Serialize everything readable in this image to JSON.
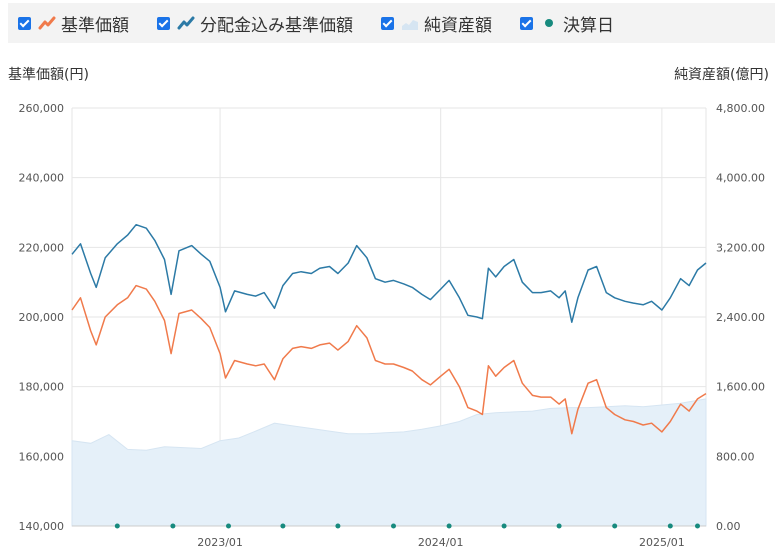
{
  "legend": {
    "items": [
      {
        "label": "基準価額",
        "icon": "line-chart-orange-icon",
        "checked": true
      },
      {
        "label": "分配金込み基準価額",
        "icon": "line-chart-blue-icon",
        "checked": true
      },
      {
        "label": "純資産額",
        "icon": "area-chart-icon",
        "checked": true
      },
      {
        "label": "決算日",
        "icon": "dot-teal-icon",
        "checked": true
      }
    ]
  },
  "colors": {
    "nav": "#f07a4b",
    "nav_with_dividends": "#2c7aa6",
    "net_assets_fill": "#e5f0f9",
    "net_assets_line": "#d6e5f2",
    "settlement": "#178a7e",
    "grid": "#e6e6e6",
    "check": "#1a73e8"
  },
  "chart_data": {
    "type": "line",
    "left_axis": {
      "title": "基準価額(円)",
      "range": [
        140000,
        260000
      ],
      "ticks": [
        "260,000",
        "240,000",
        "220,000",
        "200,000",
        "180,000",
        "160,000",
        "140,000"
      ]
    },
    "right_axis": {
      "title": "純資産額(億円)",
      "range": [
        0,
        4800
      ],
      "ticks": [
        "4,800.00",
        "4,000.00",
        "3,200.00",
        "2,400.00",
        "1,600.00",
        "800.00",
        "0.00"
      ]
    },
    "x_range": [
      "2022-05-01",
      "2025-03-15"
    ],
    "x_ticks": [
      {
        "date": "2023-01-01",
        "label": "2023/01"
      },
      {
        "date": "2024-01-01",
        "label": "2024/01"
      },
      {
        "date": "2025-01-01",
        "label": "2025/01"
      }
    ],
    "grid": true,
    "series": [
      {
        "name": "基準価額",
        "axis": "left",
        "points": [
          [
            "2022-05-01",
            202000
          ],
          [
            "2022-05-15",
            205500
          ],
          [
            "2022-06-01",
            196000
          ],
          [
            "2022-06-10",
            192000
          ],
          [
            "2022-06-25",
            200000
          ],
          [
            "2022-07-15",
            203500
          ],
          [
            "2022-08-01",
            205500
          ],
          [
            "2022-08-15",
            209000
          ],
          [
            "2022-09-01",
            208000
          ],
          [
            "2022-09-15",
            204500
          ],
          [
            "2022-10-01",
            199000
          ],
          [
            "2022-10-12",
            189500
          ],
          [
            "2022-10-25",
            201000
          ],
          [
            "2022-11-15",
            202000
          ],
          [
            "2022-12-01",
            199500
          ],
          [
            "2022-12-15",
            197000
          ],
          [
            "2023-01-01",
            189500
          ],
          [
            "2023-01-10",
            182500
          ],
          [
            "2023-01-25",
            187500
          ],
          [
            "2023-02-15",
            186500
          ],
          [
            "2023-03-01",
            186000
          ],
          [
            "2023-03-15",
            186500
          ],
          [
            "2023-04-01",
            182000
          ],
          [
            "2023-04-15",
            188000
          ],
          [
            "2023-05-01",
            191000
          ],
          [
            "2023-05-15",
            191500
          ],
          [
            "2023-06-01",
            191000
          ],
          [
            "2023-06-15",
            192000
          ],
          [
            "2023-07-01",
            192500
          ],
          [
            "2023-07-15",
            190500
          ],
          [
            "2023-08-01",
            193000
          ],
          [
            "2023-08-15",
            197500
          ],
          [
            "2023-09-01",
            194000
          ],
          [
            "2023-09-15",
            187500
          ],
          [
            "2023-10-01",
            186500
          ],
          [
            "2023-10-15",
            186500
          ],
          [
            "2023-11-01",
            185500
          ],
          [
            "2023-11-15",
            184500
          ],
          [
            "2023-12-01",
            182000
          ],
          [
            "2023-12-15",
            180500
          ],
          [
            "2024-01-01",
            183000
          ],
          [
            "2024-01-15",
            185000
          ],
          [
            "2024-02-01",
            180000
          ],
          [
            "2024-02-15",
            174000
          ],
          [
            "2024-03-01",
            173000
          ],
          [
            "2024-03-10",
            172000
          ],
          [
            "2024-03-20",
            186000
          ],
          [
            "2024-04-01",
            183000
          ],
          [
            "2024-04-15",
            185500
          ],
          [
            "2024-05-01",
            187500
          ],
          [
            "2024-05-15",
            181000
          ],
          [
            "2024-06-01",
            177500
          ],
          [
            "2024-06-15",
            177000
          ],
          [
            "2024-07-01",
            177000
          ],
          [
            "2024-07-15",
            175000
          ],
          [
            "2024-07-25",
            176500
          ],
          [
            "2024-08-05",
            166500
          ],
          [
            "2024-08-15",
            173500
          ],
          [
            "2024-09-01",
            181000
          ],
          [
            "2024-09-15",
            182000
          ],
          [
            "2024-10-01",
            174000
          ],
          [
            "2024-10-15",
            172000
          ],
          [
            "2024-11-01",
            170500
          ],
          [
            "2024-11-15",
            170000
          ],
          [
            "2024-12-01",
            169000
          ],
          [
            "2024-12-15",
            169500
          ],
          [
            "2025-01-01",
            167000
          ],
          [
            "2025-01-15",
            170000
          ],
          [
            "2025-02-01",
            175000
          ],
          [
            "2025-02-15",
            173000
          ],
          [
            "2025-03-01",
            176500
          ],
          [
            "2025-03-15",
            178000
          ]
        ]
      },
      {
        "name": "分配金込み基準価額",
        "axis": "left",
        "points": [
          [
            "2022-05-01",
            218000
          ],
          [
            "2022-05-15",
            221000
          ],
          [
            "2022-06-01",
            212500
          ],
          [
            "2022-06-10",
            208500
          ],
          [
            "2022-06-25",
            217000
          ],
          [
            "2022-07-15",
            221000
          ],
          [
            "2022-08-01",
            223500
          ],
          [
            "2022-08-15",
            226500
          ],
          [
            "2022-09-01",
            225500
          ],
          [
            "2022-09-15",
            222000
          ],
          [
            "2022-10-01",
            216500
          ],
          [
            "2022-10-12",
            206500
          ],
          [
            "2022-10-25",
            219000
          ],
          [
            "2022-11-15",
            220500
          ],
          [
            "2022-12-01",
            218000
          ],
          [
            "2022-12-15",
            216000
          ],
          [
            "2023-01-01",
            208500
          ],
          [
            "2023-01-10",
            201500
          ],
          [
            "2023-01-25",
            207500
          ],
          [
            "2023-02-15",
            206500
          ],
          [
            "2023-03-01",
            206000
          ],
          [
            "2023-03-15",
            207000
          ],
          [
            "2023-04-01",
            202500
          ],
          [
            "2023-04-15",
            209000
          ],
          [
            "2023-05-01",
            212500
          ],
          [
            "2023-05-15",
            213000
          ],
          [
            "2023-06-01",
            212500
          ],
          [
            "2023-06-15",
            214000
          ],
          [
            "2023-07-01",
            214500
          ],
          [
            "2023-07-15",
            212500
          ],
          [
            "2023-08-01",
            215500
          ],
          [
            "2023-08-15",
            220500
          ],
          [
            "2023-09-01",
            217000
          ],
          [
            "2023-09-15",
            211000
          ],
          [
            "2023-10-01",
            210000
          ],
          [
            "2023-10-15",
            210500
          ],
          [
            "2023-11-01",
            209500
          ],
          [
            "2023-11-15",
            208500
          ],
          [
            "2023-12-01",
            206500
          ],
          [
            "2023-12-15",
            205000
          ],
          [
            "2024-01-01",
            208000
          ],
          [
            "2024-01-15",
            210500
          ],
          [
            "2024-02-01",
            205500
          ],
          [
            "2024-02-15",
            200500
          ],
          [
            "2024-03-01",
            200000
          ],
          [
            "2024-03-10",
            199500
          ],
          [
            "2024-03-20",
            214000
          ],
          [
            "2024-04-01",
            211500
          ],
          [
            "2024-04-15",
            214500
          ],
          [
            "2024-05-01",
            216500
          ],
          [
            "2024-05-15",
            210000
          ],
          [
            "2024-06-01",
            207000
          ],
          [
            "2024-06-15",
            207000
          ],
          [
            "2024-07-01",
            207500
          ],
          [
            "2024-07-15",
            205500
          ],
          [
            "2024-07-25",
            207500
          ],
          [
            "2024-08-05",
            198500
          ],
          [
            "2024-08-15",
            205500
          ],
          [
            "2024-09-01",
            213500
          ],
          [
            "2024-09-15",
            214500
          ],
          [
            "2024-10-01",
            207000
          ],
          [
            "2024-10-15",
            205500
          ],
          [
            "2024-11-01",
            204500
          ],
          [
            "2024-11-15",
            204000
          ],
          [
            "2024-12-01",
            203500
          ],
          [
            "2024-12-15",
            204500
          ],
          [
            "2025-01-01",
            202000
          ],
          [
            "2025-01-15",
            205500
          ],
          [
            "2025-02-01",
            211000
          ],
          [
            "2025-02-15",
            209000
          ],
          [
            "2025-03-01",
            213500
          ],
          [
            "2025-03-15",
            215500
          ]
        ]
      },
      {
        "name": "純資産額",
        "axis": "right",
        "type": "area",
        "points": [
          [
            "2022-05-01",
            980
          ],
          [
            "2022-06-01",
            950
          ],
          [
            "2022-07-01",
            1050
          ],
          [
            "2022-08-01",
            880
          ],
          [
            "2022-09-01",
            870
          ],
          [
            "2022-10-01",
            910
          ],
          [
            "2022-11-01",
            900
          ],
          [
            "2022-12-01",
            890
          ],
          [
            "2023-01-01",
            980
          ],
          [
            "2023-02-01",
            1010
          ],
          [
            "2023-03-01",
            1090
          ],
          [
            "2023-04-01",
            1180
          ],
          [
            "2023-05-01",
            1150
          ],
          [
            "2023-06-01",
            1120
          ],
          [
            "2023-07-01",
            1090
          ],
          [
            "2023-08-01",
            1060
          ],
          [
            "2023-09-01",
            1060
          ],
          [
            "2023-10-01",
            1070
          ],
          [
            "2023-11-01",
            1080
          ],
          [
            "2023-12-01",
            1110
          ],
          [
            "2024-01-01",
            1150
          ],
          [
            "2024-02-01",
            1200
          ],
          [
            "2024-03-01",
            1280
          ],
          [
            "2024-04-01",
            1300
          ],
          [
            "2024-05-01",
            1310
          ],
          [
            "2024-06-01",
            1320
          ],
          [
            "2024-07-01",
            1350
          ],
          [
            "2024-08-01",
            1360
          ],
          [
            "2024-09-01",
            1360
          ],
          [
            "2024-10-01",
            1370
          ],
          [
            "2024-11-01",
            1380
          ],
          [
            "2024-12-01",
            1370
          ],
          [
            "2025-01-01",
            1390
          ],
          [
            "2025-02-01",
            1410
          ],
          [
            "2025-03-15",
            1460
          ]
        ]
      }
    ],
    "settlement_dates": [
      "2022-07-15",
      "2022-10-15",
      "2023-01-15",
      "2023-04-15",
      "2023-07-15",
      "2023-10-15",
      "2024-01-15",
      "2024-04-15",
      "2024-07-15",
      "2024-10-15",
      "2025-01-15",
      "2025-03-01"
    ]
  }
}
